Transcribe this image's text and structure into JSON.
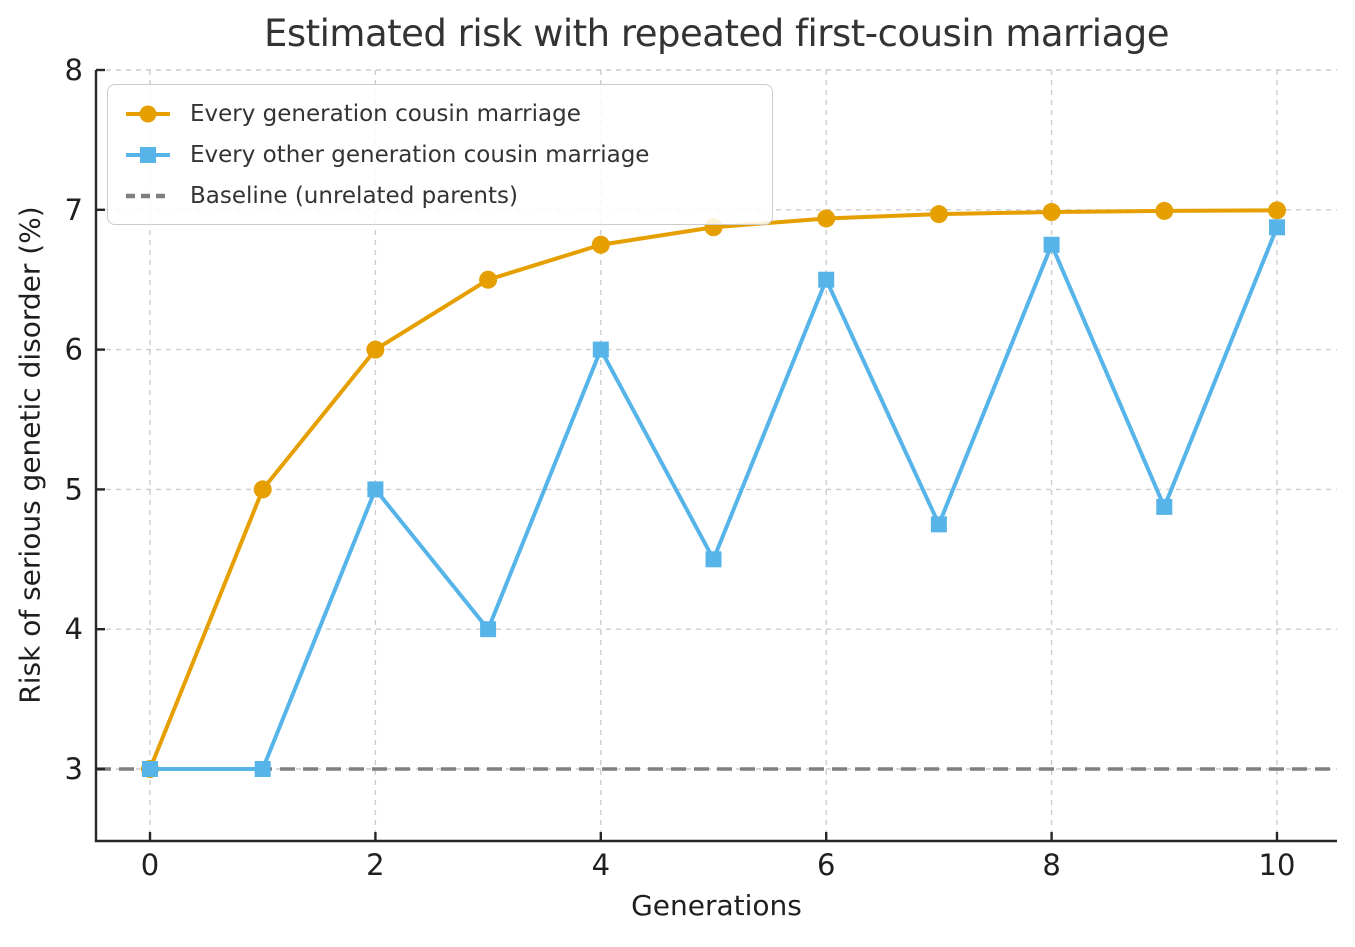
{
  "chart_data": {
    "type": "line",
    "title": "Estimated risk with repeated first-cousin marriage",
    "xlabel": "Generations",
    "ylabel": "Risk of serious genetic disorder (%)",
    "x": [
      0,
      1,
      2,
      3,
      4,
      5,
      6,
      7,
      8,
      9,
      10
    ],
    "series": [
      {
        "name": "Every generation cousin marriage",
        "marker": "circle",
        "color": "#E69F00",
        "values": [
          3.0,
          5.0,
          6.0,
          6.5,
          6.75,
          6.875,
          6.938,
          6.969,
          6.984,
          6.992,
          6.996
        ]
      },
      {
        "name": "Every other generation cousin marriage",
        "marker": "square",
        "color": "#56B4E9",
        "values": [
          3.0,
          3.0,
          5.0,
          4.0,
          6.0,
          4.5,
          6.5,
          4.75,
          6.75,
          4.875,
          6.875
        ]
      },
      {
        "name": "Baseline (unrelated parents)",
        "type": "hline",
        "style": "dashed",
        "color": "#7F7F7F",
        "value": 3.0
      }
    ],
    "xticks": [
      0,
      2,
      4,
      6,
      8,
      10
    ],
    "yticks": [
      3,
      4,
      5,
      6,
      7,
      8
    ],
    "xlim": [
      -0.5,
      10.5
    ],
    "ylim": [
      2.49,
      8.0
    ],
    "grid": true,
    "grid_style": "dashed",
    "legend_position": "upper left",
    "colors": {
      "grid": "#CCCCCC",
      "spine": "#262626",
      "tick_label": "#1f1f1f",
      "title": "#333333"
    }
  }
}
